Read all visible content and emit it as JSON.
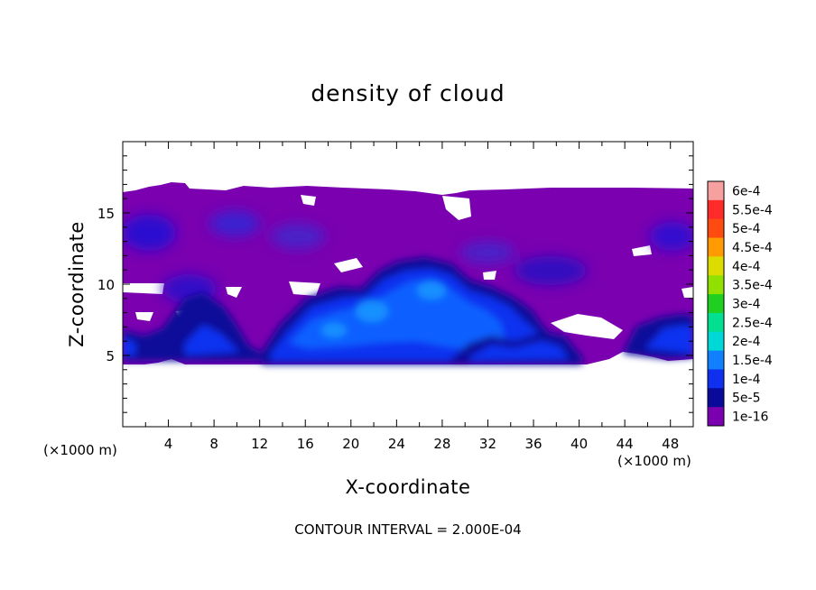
{
  "chart_data": {
    "type": "heatmap",
    "title": "density of cloud",
    "xlabel": "X-coordinate",
    "ylabel": "Z-coordinate",
    "x_unit": "(×1000 m)",
    "y_unit": "(×1000 m)",
    "xlim": [
      0,
      50
    ],
    "ylim": [
      0,
      20
    ],
    "x_ticks": [
      "4",
      "8",
      "12",
      "16",
      "20",
      "24",
      "28",
      "32",
      "36",
      "40",
      "44",
      "48"
    ],
    "y_ticks": [
      "5",
      "10",
      "15"
    ],
    "colorbar": {
      "levels": [
        "6e-4",
        "5.5e-4",
        "5e-4",
        "4.5e-4",
        "4e-4",
        "3.5e-4",
        "3e-4",
        "2.5e-4",
        "2e-4",
        "1.5e-4",
        "1e-4",
        "5e-5",
        "1e-16"
      ],
      "colors": [
        "#f7a0a0",
        "#ff2a2a",
        "#ff4a10",
        "#ff9a00",
        "#dcdc00",
        "#90e000",
        "#20d020",
        "#00e090",
        "#00d8d8",
        "#1080ff",
        "#1030f0",
        "#0a0a9a",
        "#7a00b0"
      ]
    },
    "cloud_layer": {
      "z_bottom": 4.3,
      "z_top": 16.6
    },
    "note": "CONTOUR INTERVAL = 2.000E-04"
  }
}
